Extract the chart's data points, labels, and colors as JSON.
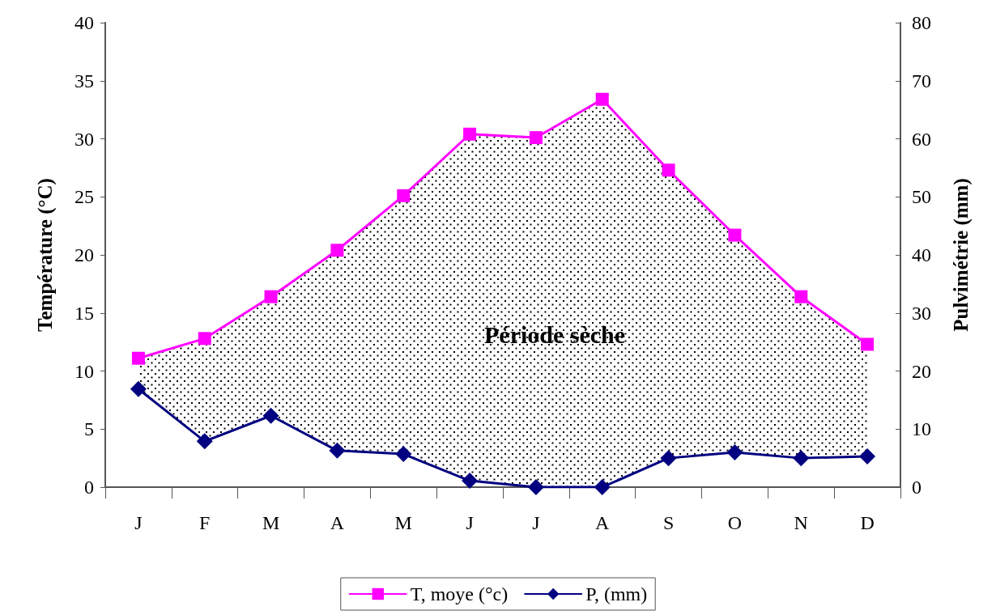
{
  "chart_data": {
    "type": "line",
    "ylabel": "Température (°C)",
    "y2label": "Pulvimétrie (mm)",
    "categories": [
      "J",
      "F",
      "M",
      "A",
      "M",
      "J",
      "J",
      "A",
      "S",
      "O",
      "N",
      "D"
    ],
    "series": [
      {
        "name": "T, moye (°c)",
        "color": "#ff00ff",
        "marker": "square",
        "values": [
          11.1,
          12.8,
          16.4,
          20.4,
          25.1,
          30.4,
          30.1,
          33.4,
          27.3,
          21.7,
          16.4,
          12.3
        ],
        "upper": [
          11.1,
          12.8,
          16.4,
          20.4,
          25.1,
          30.4,
          30.1,
          33.4,
          27.3,
          21.7,
          16.4,
          12.3
        ],
        "lower": [
          8.5,
          4.0,
          6.2,
          3.2,
          2.9,
          0.6,
          0,
          0,
          2.5,
          3.0,
          2.5,
          2.7
        ]
      },
      {
        "name": "P, (mm)",
        "color": "#000080",
        "marker": "diamond",
        "axis": "y2",
        "values": [
          16.9,
          7.9,
          12.3,
          6.3,
          5.7,
          1.1,
          0,
          0,
          5.0,
          6.0,
          5.0,
          5.3
        ]
      }
    ],
    "ylim": [
      0,
      40
    ],
    "yticks": [
      0,
      5,
      10,
      15,
      20,
      25,
      30,
      35,
      40
    ],
    "y2lim": [
      0,
      80
    ],
    "y2ticks": [
      0,
      10,
      20,
      30,
      40,
      50,
      60,
      70,
      80
    ],
    "annotations": [
      "Période sèche"
    ],
    "grid": false,
    "legend": "bottom"
  }
}
